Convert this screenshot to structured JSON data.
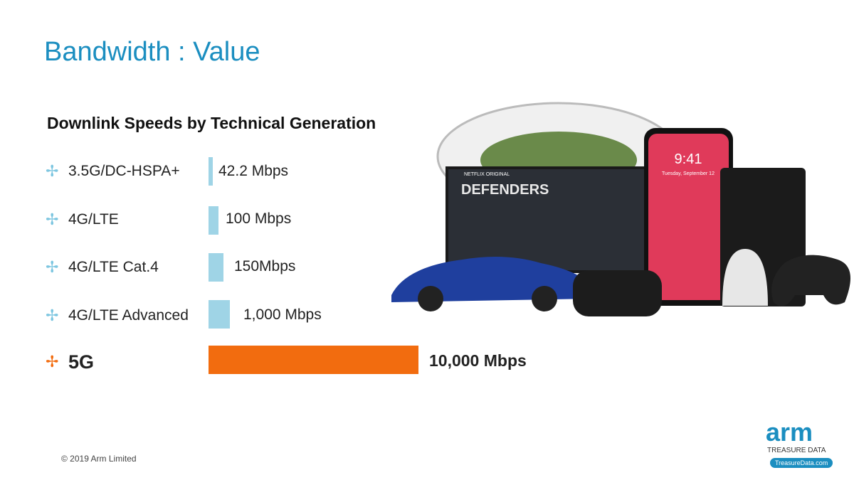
{
  "title": "Bandwidth : Value",
  "subtitle": "Downlink Speeds by Technical Generation",
  "rows": [
    {
      "label": "3.5G/DC-HSPA+",
      "speed": "42.2 Mbps"
    },
    {
      "label": "4G/LTE",
      "speed": "100 Mbps"
    },
    {
      "label": "4G/LTE Cat.4",
      "speed": "150Mbps"
    },
    {
      "label": "4G/LTE Advanced",
      "speed": "1,000 Mbps"
    },
    {
      "label": "5G",
      "speed": "10,000 Mbps"
    }
  ],
  "image": {
    "tv_tag": "NETFLIX ORIGINAL",
    "tv_show": "DEFENDERS",
    "phone_time": "9:41",
    "phone_date": "Tuesday, September 12"
  },
  "footer": "© 2019 Arm Limited",
  "logo": {
    "brand": "arm",
    "line": "TREASURE DATA",
    "url": "TreasureData.com"
  }
}
